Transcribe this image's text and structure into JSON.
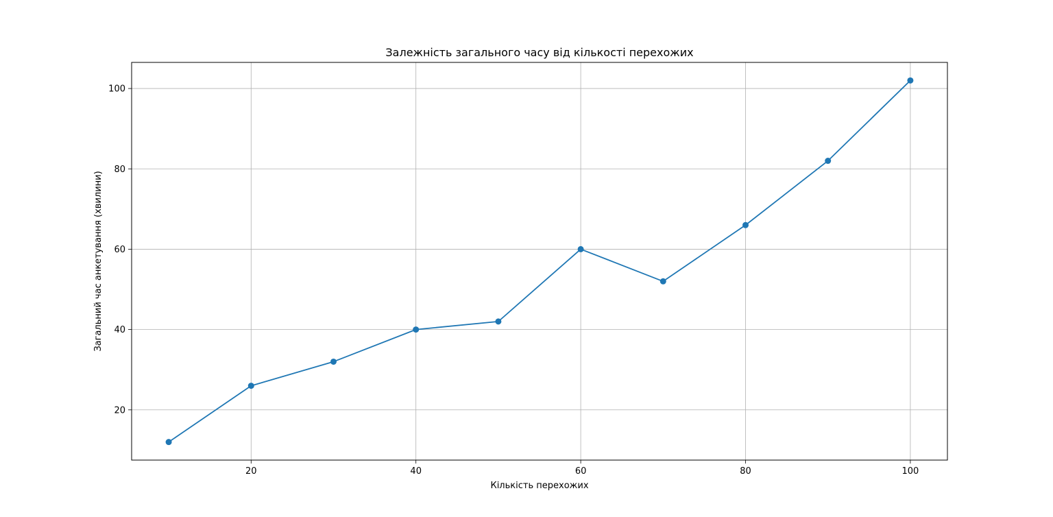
{
  "chart_data": {
    "type": "line",
    "title": "Залежність загального часу від кількості перехожих",
    "xlabel": "Кількість перехожих",
    "ylabel": "Загальний час анкетування (хвилини)",
    "x": [
      10,
      20,
      30,
      40,
      50,
      60,
      70,
      80,
      90,
      100
    ],
    "series": [
      {
        "values": [
          12,
          26,
          32,
          40,
          42,
          60,
          52,
          66,
          82,
          102
        ]
      }
    ],
    "xlim": [
      5.5,
      104.5
    ],
    "ylim": [
      7.5,
      106.5
    ],
    "xticks": [
      20,
      40,
      60,
      80,
      100
    ],
    "yticks": [
      20,
      40,
      60,
      80,
      100
    ],
    "grid": true,
    "marker": "circle",
    "line_color": "#1f77b4",
    "grid_color": "#b0b0b0"
  }
}
